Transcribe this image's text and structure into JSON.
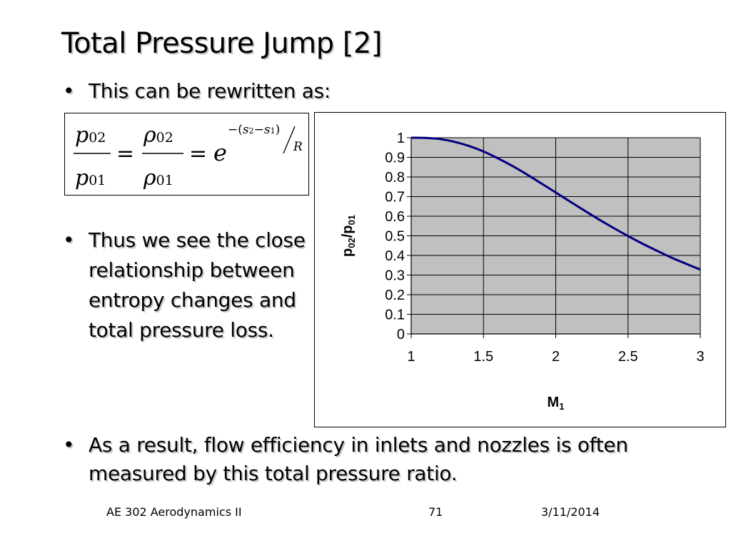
{
  "slide": {
    "title": "Total Pressure Jump [2]",
    "bullets": [
      "This can be rewritten as:",
      "Thus we see the close relationship between entropy changes and total pressure loss.",
      "As a result, flow efficiency in inlets and nozzles is often measured by this total pressure ratio."
    ],
    "bullet_marker": "•"
  },
  "equation": {
    "lhs_num": "p",
    "lhs_num_sub": "02",
    "lhs_den": "p",
    "lhs_den_sub": "01",
    "mid_num": "ρ",
    "mid_num_sub": "02",
    "mid_den": "ρ",
    "mid_den_sub": "01",
    "equals": "=",
    "base": "e",
    "exp_minus": "−",
    "exp_s2": "s",
    "exp_s2_sub": "2",
    "exp_s1": "s",
    "exp_s1_sub": "1",
    "exp_R": "R"
  },
  "chart_data": {
    "type": "line",
    "xlabel": "M",
    "xlabel_sub": "1",
    "ylabel": "p",
    "ylabel_sub1": "02",
    "ylabel_sep": "/p",
    "ylabel_sub2": "01",
    "xlim": [
      1,
      3
    ],
    "ylim": [
      0,
      1
    ],
    "x_ticks": [
      "1",
      "1.5",
      "2",
      "2.5",
      "3"
    ],
    "y_ticks": [
      "0",
      "0.1",
      "0.2",
      "0.3",
      "0.4",
      "0.5",
      "0.6",
      "0.7",
      "0.8",
      "0.9",
      "1"
    ],
    "grid": true,
    "plot_background": "#c0c0c0",
    "line_color": "#000080",
    "series": [
      {
        "x": [
          1.0,
          1.1,
          1.2,
          1.3,
          1.4,
          1.5,
          1.6,
          1.7,
          1.8,
          1.9,
          2.0,
          2.1,
          2.2,
          2.3,
          2.4,
          2.5,
          2.6,
          2.7,
          2.8,
          2.9,
          3.0
        ],
        "values": [
          1.0,
          0.999,
          0.993,
          0.979,
          0.958,
          0.93,
          0.895,
          0.856,
          0.813,
          0.767,
          0.721,
          0.674,
          0.628,
          0.583,
          0.54,
          0.499,
          0.46,
          0.424,
          0.389,
          0.358,
          0.328
        ]
      }
    ]
  },
  "footer": {
    "course": "AE 302 Aerodynamics II",
    "page": "71",
    "date": "3/11/2014"
  }
}
